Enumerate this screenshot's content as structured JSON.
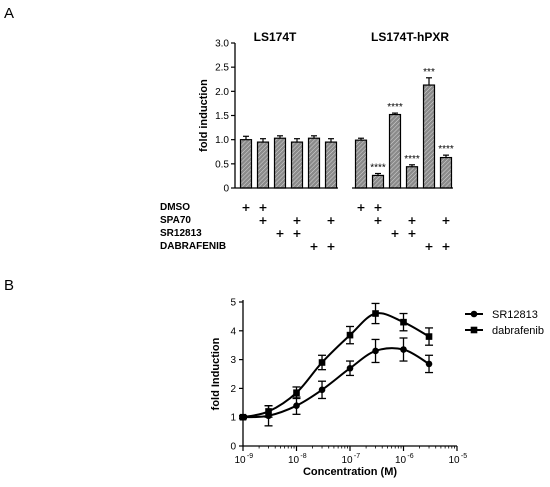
{
  "chart_data": [
    {
      "type": "bar",
      "panel_label": "A",
      "ylabel": "fold induction",
      "ylim": [
        0,
        3.0
      ],
      "yticks": [
        0,
        0.5,
        1.0,
        1.5,
        2.0,
        2.5,
        3.0
      ],
      "ytick_labels": [
        "0",
        "0.5",
        "1.0",
        "1.5",
        "2.0",
        "2.5",
        "3.0"
      ],
      "groups": [
        {
          "name": "LS174T",
          "values": [
            1.0,
            0.95,
            1.03,
            0.95,
            1.03,
            0.95
          ],
          "errors": [
            0.07,
            0.07,
            0.05,
            0.07,
            0.05,
            0.07
          ],
          "significance": [
            "",
            "",
            "",
            "",
            "",
            ""
          ]
        },
        {
          "name": "LS174T-hPXR",
          "values": [
            0.99,
            0.26,
            1.52,
            0.44,
            2.13,
            0.63
          ],
          "errors": [
            0.04,
            0.04,
            0.03,
            0.04,
            0.15,
            0.05
          ],
          "significance": [
            "",
            "****",
            "****",
            "****",
            "***",
            "****"
          ]
        }
      ],
      "treatments": [
        {
          "name": "DMSO",
          "marks": [
            true,
            true,
            false,
            false,
            false,
            false
          ]
        },
        {
          "name": "SPA70",
          "marks": [
            false,
            true,
            false,
            true,
            false,
            true
          ]
        },
        {
          "name": "SR12813",
          "marks": [
            false,
            false,
            true,
            true,
            false,
            false
          ]
        },
        {
          "name": "DABRAFENIB",
          "marks": [
            false,
            false,
            false,
            false,
            true,
            true
          ]
        }
      ],
      "plus_symbol": "+",
      "bar_fill": "#8a8a8a"
    },
    {
      "type": "line",
      "panel_label": "B",
      "xlabel": "Concentration  (M)",
      "ylabel": "fold Induction",
      "xscale": "log",
      "xlim": [
        1e-09,
        1e-05
      ],
      "ylim": [
        0,
        5
      ],
      "yticks": [
        0,
        1,
        2,
        3,
        4,
        5
      ],
      "ytick_labels": [
        "0",
        "1",
        "2",
        "3",
        "4",
        "5"
      ],
      "xticks": [
        1e-09,
        1e-08,
        1e-07,
        1e-06,
        1e-05
      ],
      "xtick_labels": [
        {
          "base": "10",
          "exp": "-9"
        },
        {
          "base": "10",
          "exp": "-8"
        },
        {
          "base": "10",
          "exp": "-7"
        },
        {
          "base": "10",
          "exp": "-6"
        },
        {
          "base": "10",
          "exp": "-5"
        }
      ],
      "legend_position": "top-right",
      "series": [
        {
          "name": "SR12813",
          "marker": "circle",
          "x": [
            1e-09,
            3e-09,
            1e-08,
            3e-08,
            1e-07,
            3e-07,
            1e-06,
            3e-06
          ],
          "y": [
            1.0,
            1.05,
            1.4,
            1.95,
            2.7,
            3.3,
            3.35,
            2.85
          ],
          "err": [
            0.05,
            0.35,
            0.3,
            0.3,
            0.25,
            0.4,
            0.4,
            0.3
          ]
        },
        {
          "name": "dabrafenib",
          "marker": "square",
          "x": [
            1e-09,
            3e-09,
            1e-08,
            3e-08,
            1e-07,
            3e-07,
            1e-06,
            3e-06
          ],
          "y": [
            1.0,
            1.2,
            1.85,
            2.9,
            3.85,
            4.6,
            4.3,
            3.8
          ],
          "err": [
            0.05,
            0.2,
            0.2,
            0.25,
            0.3,
            0.35,
            0.3,
            0.3
          ]
        }
      ]
    }
  ]
}
